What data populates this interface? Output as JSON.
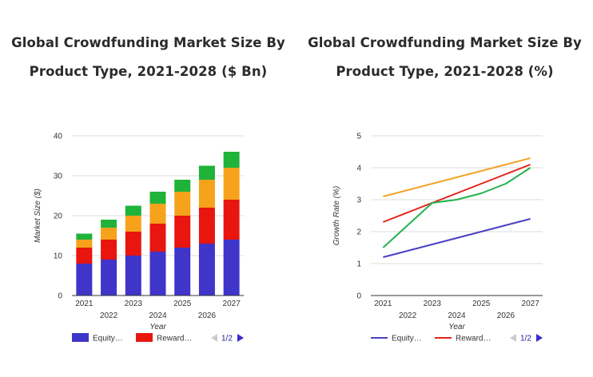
{
  "chart_data": [
    {
      "type": "bar",
      "stacked": true,
      "title_line1": "Global Crowdfunding Market Size By",
      "title_line2": "Product Type, 2021-2028 ($ Bn)",
      "xlabel": "Year",
      "ylabel": "Market Size ($)",
      "ylim": [
        0,
        40
      ],
      "yticks": [
        "0",
        "10",
        "20",
        "30",
        "40"
      ],
      "categories": [
        "2021",
        "2022",
        "2023",
        "2024",
        "2025",
        "2026",
        "2027"
      ],
      "grid": true,
      "legend_position": "bottom",
      "legend_page": "1/2",
      "series": [
        {
          "name": "Equity…",
          "color": "#3f35c9",
          "values": [
            8,
            9,
            10,
            11,
            12,
            13,
            14
          ]
        },
        {
          "name": "Reward…",
          "color": "#e8160f",
          "values": [
            4,
            5,
            6,
            7,
            8,
            9,
            10
          ]
        },
        {
          "name": "",
          "color": "#f7a21b",
          "values": [
            2,
            3,
            4,
            5,
            6,
            7,
            8
          ]
        },
        {
          "name": "",
          "color": "#1fb33a",
          "values": [
            1.5,
            2,
            2.5,
            3,
            3,
            3.5,
            4
          ]
        }
      ]
    },
    {
      "type": "line",
      "title_line1": "Global Crowdfunding Market Size By",
      "title_line2": "Product Type, 2021-2028 (%)",
      "xlabel": "Year",
      "ylabel": "Growth Rate (%)",
      "ylim": [
        0,
        5
      ],
      "yticks": [
        "0",
        "1",
        "2",
        "3",
        "4",
        "5"
      ],
      "categories": [
        "2021",
        "2022",
        "2023",
        "2024",
        "2025",
        "2026",
        "2027"
      ],
      "grid": true,
      "legend_position": "bottom",
      "legend_page": "1/2",
      "series": [
        {
          "name": "Equity…",
          "color": "#4b3fc4",
          "values": [
            1.2,
            1.4,
            1.6,
            1.8,
            2.0,
            2.2,
            2.4
          ]
        },
        {
          "name": "Reward…",
          "color": "#e2231a",
          "values": [
            2.3,
            2.6,
            2.9,
            3.2,
            3.5,
            3.8,
            4.1
          ]
        },
        {
          "name": "",
          "color": "#f0a52a",
          "values": [
            3.1,
            3.3,
            3.5,
            3.7,
            3.9,
            4.1,
            4.3
          ]
        },
        {
          "name": "",
          "color": "#22b24c",
          "values": [
            1.5,
            2.2,
            2.9,
            3.0,
            3.2,
            3.5,
            4.0
          ]
        }
      ]
    }
  ]
}
